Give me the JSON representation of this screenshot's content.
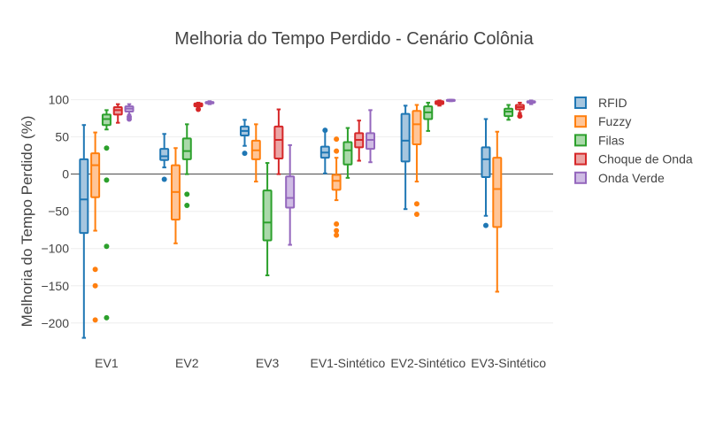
{
  "chart_data": {
    "type": "box",
    "title": "Melhoria do Tempo Perdido - Cenário Colônia",
    "xlabel": "",
    "ylabel": "Melhoria do Tempo Perdido (%)",
    "ylim": [
      -230,
      115
    ],
    "yticks": [
      100,
      50,
      0,
      -50,
      -100,
      -150,
      -200
    ],
    "ytick_labels": [
      "100",
      "50",
      "0",
      "−50",
      "−100",
      "−150",
      "−200"
    ],
    "categories": [
      "EV1",
      "EV2",
      "EV3",
      "EV1-Sintético",
      "EV2-Sintético",
      "EV3-Sintético"
    ],
    "legend_position": "right",
    "grid": true,
    "series": [
      {
        "name": "RFID",
        "color": "#1f77b4",
        "fill": "#a6c6df",
        "boxes": [
          {
            "min": -220,
            "q1": -79,
            "median": -34,
            "q3": 20,
            "max": 66,
            "outliers": []
          },
          {
            "min": 9,
            "q1": 19,
            "median": 24,
            "q3": 34,
            "max": 54,
            "outliers": [
              -7
            ]
          },
          {
            "min": 38,
            "q1": 52,
            "median": 58,
            "q3": 64,
            "max": 73,
            "outliers": [
              28
            ]
          },
          {
            "min": 1,
            "q1": 22,
            "median": 29,
            "q3": 37,
            "max": 60,
            "outliers": [
              59
            ]
          },
          {
            "min": -47,
            "q1": 17,
            "median": 45,
            "q3": 81,
            "max": 92,
            "outliers": []
          },
          {
            "min": -56,
            "q1": -4,
            "median": 20,
            "q3": 36,
            "max": 74,
            "outliers": [
              -69
            ]
          }
        ]
      },
      {
        "name": "Fuzzy",
        "color": "#ff7f0e",
        "fill": "#ffc597",
        "boxes": [
          {
            "min": -76,
            "q1": -31,
            "median": 12,
            "q3": 28,
            "max": 56,
            "outliers": [
              -128,
              -150,
              -196
            ]
          },
          {
            "min": -93,
            "q1": -61,
            "median": -24,
            "q3": 12,
            "max": 35,
            "outliers": []
          },
          {
            "min": -10,
            "q1": 20,
            "median": 32,
            "q3": 45,
            "max": 67,
            "outliers": []
          },
          {
            "min": -35,
            "q1": -21,
            "median": -9,
            "q3": -1,
            "max": 22,
            "outliers": [
              47,
              31,
              -67,
              -76,
              -82
            ]
          },
          {
            "min": -10,
            "q1": 40,
            "median": 67,
            "q3": 85,
            "max": 93,
            "outliers": [
              -40,
              -54
            ]
          },
          {
            "min": -158,
            "q1": -71,
            "median": -20,
            "q3": 22,
            "max": 57,
            "outliers": []
          }
        ]
      },
      {
        "name": "Filas",
        "color": "#2ca02c",
        "fill": "#aad9aa",
        "boxes": [
          {
            "min": 60,
            "q1": 66,
            "median": 74,
            "q3": 80,
            "max": 86,
            "outliers": [
              35,
              -8,
              -97,
              -193
            ]
          },
          {
            "min": 0,
            "q1": 20,
            "median": 31,
            "q3": 48,
            "max": 67,
            "outliers": [
              -27,
              -42
            ]
          },
          {
            "min": -136,
            "q1": -89,
            "median": -65,
            "q3": -22,
            "max": 15,
            "outliers": []
          },
          {
            "min": -5,
            "q1": 13,
            "median": 32,
            "q3": 43,
            "max": 62,
            "outliers": []
          },
          {
            "min": 58,
            "q1": 74,
            "median": 83,
            "q3": 91,
            "max": 96,
            "outliers": []
          },
          {
            "min": 73,
            "q1": 78,
            "median": 84,
            "q3": 88,
            "max": 93,
            "outliers": []
          }
        ]
      },
      {
        "name": "Choque de Onda",
        "color": "#d62728",
        "fill": "#eba5a5",
        "boxes": [
          {
            "min": 69,
            "q1": 80,
            "median": 86,
            "q3": 90,
            "max": 94,
            "outliers": []
          },
          {
            "min": 89,
            "q1": 91,
            "median": 93,
            "q3": 95,
            "max": 96,
            "outliers": [
              87
            ]
          },
          {
            "min": 0,
            "q1": 21,
            "median": 46,
            "q3": 64,
            "max": 87,
            "outliers": []
          },
          {
            "min": 18,
            "q1": 36,
            "median": 46,
            "q3": 55,
            "max": 72,
            "outliers": []
          },
          {
            "min": 92,
            "q1": 94,
            "median": 96,
            "q3": 98,
            "max": 99,
            "outliers": []
          },
          {
            "min": 82,
            "q1": 87,
            "median": 90,
            "q3": 93,
            "max": 96,
            "outliers": [
              78
            ]
          }
        ]
      },
      {
        "name": "Onda Verde",
        "color": "#9467bd",
        "fill": "#cfbce4",
        "boxes": [
          {
            "min": 80,
            "q1": 84,
            "median": 88,
            "q3": 91,
            "max": 94,
            "outliers": [
              74,
              77
            ]
          },
          {
            "min": 94,
            "q1": 95,
            "median": 96,
            "q3": 97,
            "max": 98,
            "outliers": []
          },
          {
            "min": -95,
            "q1": -45,
            "median": -32,
            "q3": -3,
            "max": 39,
            "outliers": []
          },
          {
            "min": 16,
            "q1": 34,
            "median": 46,
            "q3": 55,
            "max": 86,
            "outliers": []
          },
          {
            "min": 98,
            "q1": 99,
            "median": 99,
            "q3": 100,
            "max": 100,
            "outliers": []
          },
          {
            "min": 94,
            "q1": 96,
            "median": 97,
            "q3": 98,
            "max": 99,
            "outliers": []
          }
        ]
      }
    ]
  }
}
